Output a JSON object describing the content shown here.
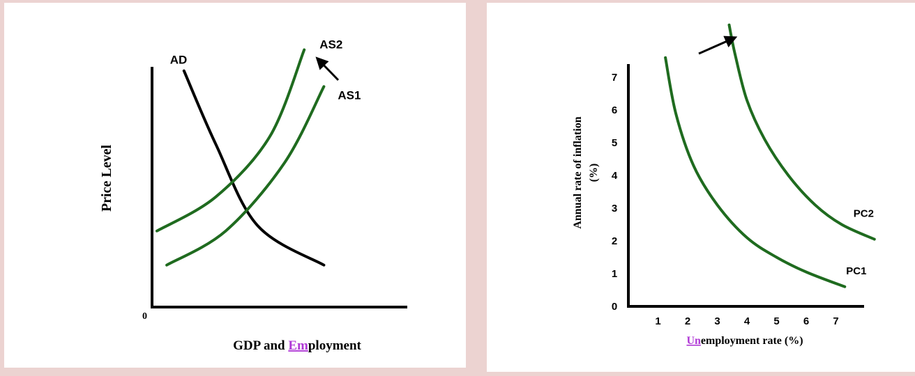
{
  "colors": {
    "background": "#ecd3d1",
    "panel": "#ffffff",
    "curve_green": "#1f6b1f",
    "curve_black": "#000000",
    "axis": "#000000",
    "highlight": "#b03ad6"
  },
  "chart_data": [
    {
      "type": "line",
      "title": "",
      "xlabel_parts": [
        {
          "text": "GDP and ",
          "highlight": false
        },
        {
          "text": "Em",
          "highlight": true
        },
        {
          "text": "ployment",
          "highlight": false
        }
      ],
      "xlabel": "GDP and Employment",
      "ylabel": "Price Level",
      "origin_label": "0",
      "ticks": "none",
      "grid": false,
      "series": [
        {
          "name": "AD",
          "color": "#000000",
          "points": [
            [
              1.3,
              9.0
            ],
            [
              2.6,
              6.2
            ],
            [
              4.3,
              3.1
            ],
            [
              7.0,
              1.6
            ]
          ]
        },
        {
          "name": "AS2",
          "color": "#1f6b1f",
          "points": [
            [
              0.2,
              2.9
            ],
            [
              2.6,
              4.2
            ],
            [
              4.8,
              6.5
            ],
            [
              6.2,
              9.8
            ]
          ]
        },
        {
          "name": "AS1",
          "color": "#1f6b1f",
          "points": [
            [
              0.6,
              1.6
            ],
            [
              3.0,
              2.9
            ],
            [
              5.4,
              5.5
            ],
            [
              7.0,
              8.4
            ]
          ]
        }
      ],
      "annotations": [
        {
          "type": "arrow",
          "direction": "up-left",
          "near": "AS2"
        }
      ]
    },
    {
      "type": "line",
      "title": "",
      "xlabel_parts": [
        {
          "text": "Un",
          "highlight": true
        },
        {
          "text": "employment rate (%)",
          "highlight": false
        }
      ],
      "xlabel": "Unemployment rate (%)",
      "ylabel_lines": [
        "Annual rate of inflation",
        "(%)"
      ],
      "x_ticks": [
        "1",
        "2",
        "3",
        "4",
        "5",
        "6",
        "7"
      ],
      "y_ticks": [
        "0",
        "1",
        "2",
        "3",
        "4",
        "5",
        "6",
        "7"
      ],
      "xlim": [
        0,
        7.6
      ],
      "ylim": [
        0,
        7.6
      ],
      "grid": false,
      "series": [
        {
          "name": "PC1",
          "color": "#1f6b1f",
          "points": [
            [
              1.25,
              7.6
            ],
            [
              1.6,
              5.9
            ],
            [
              2.2,
              4.3
            ],
            [
              3.0,
              3.1
            ],
            [
              4.0,
              2.1
            ],
            [
              5.0,
              1.5
            ],
            [
              6.0,
              1.05
            ],
            [
              7.3,
              0.6
            ]
          ]
        },
        {
          "name": "PC2",
          "color": "#1f6b1f",
          "points": [
            [
              3.4,
              8.6
            ],
            [
              3.6,
              7.7
            ],
            [
              4.0,
              6.3
            ],
            [
              4.6,
              5.1
            ],
            [
              5.4,
              4.0
            ],
            [
              6.3,
              3.1
            ],
            [
              7.2,
              2.5
            ],
            [
              8.3,
              2.05
            ]
          ]
        }
      ],
      "annotations": [
        {
          "type": "arrow",
          "direction": "up-right",
          "near": "PC2"
        }
      ]
    }
  ]
}
